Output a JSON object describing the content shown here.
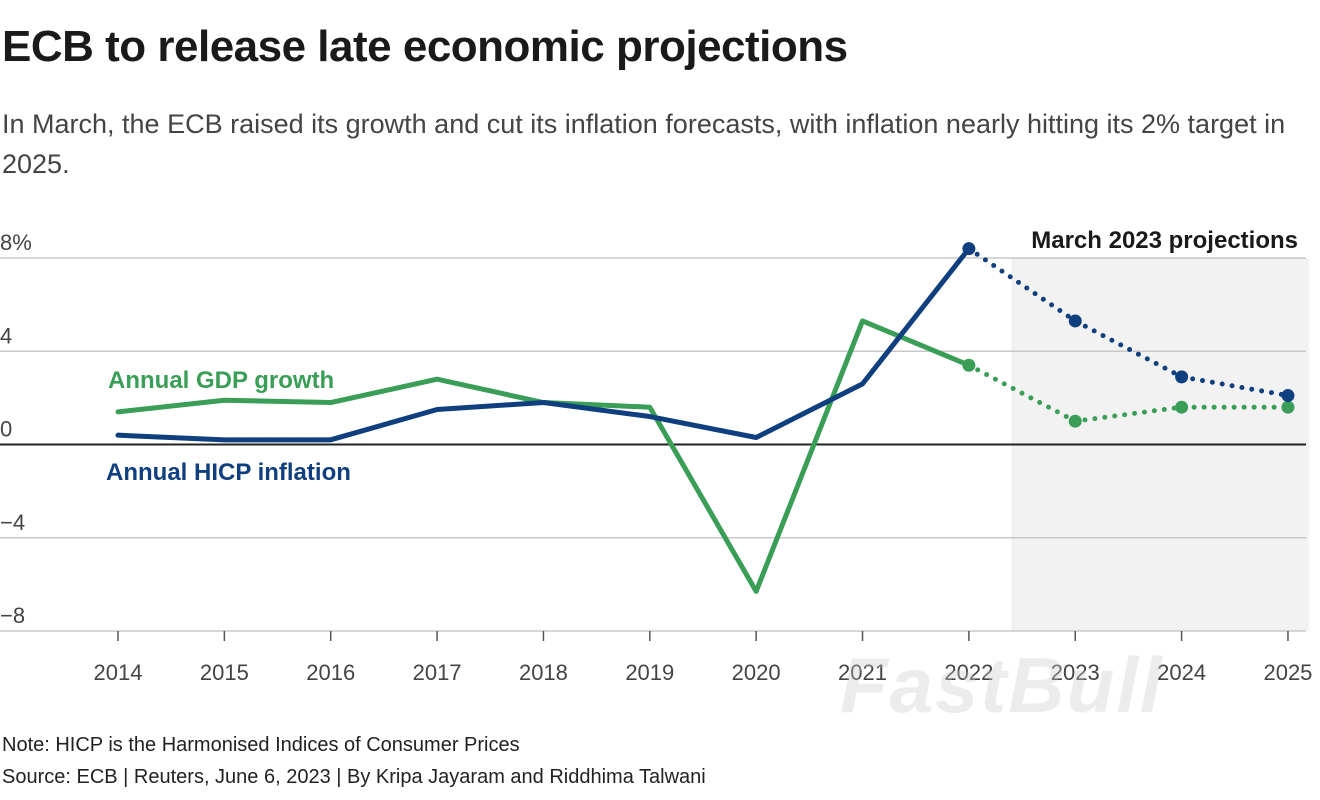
{
  "title": "ECB to release late economic projections",
  "subtitle": "In March, the ECB raised its growth and cut its inflation forecasts, with inflation nearly hitting its 2% target in 2025.",
  "note": "Note: HICP is the Harmonised Indices of Consumer Prices",
  "source": "Source: ECB | Reuters, June 6, 2023 | By Kripa Jayaram and Riddhima Talwani",
  "watermark": "FastBull",
  "chart_data": {
    "type": "line",
    "x": [
      2014,
      2015,
      2016,
      2017,
      2018,
      2019,
      2020,
      2021,
      2022,
      2023,
      2024,
      2025
    ],
    "x_tick_labels": [
      "2014",
      "2015",
      "2016",
      "2017",
      "2018",
      "2019",
      "2020",
      "2021",
      "2022",
      "2023",
      "2024",
      "2025"
    ],
    "ylim": [
      -8,
      8
    ],
    "y_ticks": [
      8,
      4,
      0,
      -4,
      -8
    ],
    "y_tick_labels": [
      "8%",
      "4",
      "0",
      "−4",
      "−8"
    ],
    "grid": true,
    "projection_region": {
      "label": "March 2023 projections",
      "from": 2022.4,
      "to": 2025.2,
      "shade_color": "#f2f2f2"
    },
    "projection_start": 2022,
    "series": [
      {
        "name": "Annual GDP growth",
        "color": "#3a9e57",
        "values": [
          1.4,
          1.9,
          1.8,
          2.8,
          1.8,
          1.6,
          -6.3,
          5.3,
          3.4,
          1.0,
          1.6,
          1.6
        ]
      },
      {
        "name": "Annual HICP inflation",
        "color": "#0f3f7f",
        "values": [
          0.4,
          0.2,
          0.2,
          1.5,
          1.8,
          1.2,
          0.3,
          2.6,
          8.4,
          5.3,
          2.9,
          2.1
        ]
      }
    ]
  }
}
